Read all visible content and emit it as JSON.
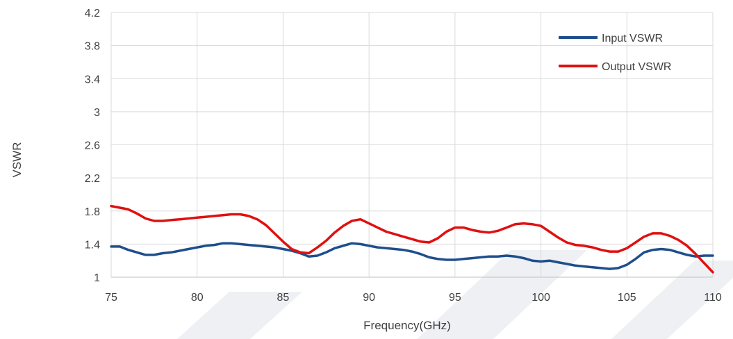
{
  "chart_data": {
    "type": "line",
    "title": "",
    "xlabel": "Frequency(GHz)",
    "ylabel": "VSWR",
    "xlim": [
      75,
      110
    ],
    "ylim": [
      1,
      4.2
    ],
    "xticks": [
      "75",
      "80",
      "85",
      "90",
      "95",
      "100",
      "105",
      "110"
    ],
    "yticks": [
      "1",
      "1.4",
      "1.8",
      "2.2",
      "2.6",
      "3",
      "3.4",
      "3.8",
      "4.2"
    ],
    "grid": true,
    "legend": "top-right",
    "series": [
      {
        "name": "Input VSWR",
        "color": "#1f4e8c",
        "x": [
          75,
          75.5,
          76,
          76.5,
          77,
          77.5,
          78,
          78.5,
          79,
          79.5,
          80,
          80.5,
          81,
          81.5,
          82,
          82.5,
          83,
          83.5,
          84,
          84.5,
          85,
          85.5,
          86,
          86.5,
          87,
          87.5,
          88,
          88.5,
          89,
          89.5,
          90,
          90.5,
          91,
          91.5,
          92,
          92.5,
          93,
          93.5,
          94,
          94.5,
          95,
          95.5,
          96,
          96.5,
          97,
          97.5,
          98,
          98.5,
          99,
          99.5,
          100,
          100.5,
          101,
          101.5,
          102,
          102.5,
          103,
          103.5,
          104,
          104.5,
          105,
          105.5,
          106,
          106.5,
          107,
          107.5,
          108,
          108.5,
          109,
          109.5,
          110
        ],
        "y": [
          1.37,
          1.37,
          1.33,
          1.3,
          1.27,
          1.27,
          1.29,
          1.3,
          1.32,
          1.34,
          1.36,
          1.38,
          1.39,
          1.41,
          1.41,
          1.4,
          1.39,
          1.38,
          1.37,
          1.36,
          1.34,
          1.32,
          1.29,
          1.25,
          1.26,
          1.3,
          1.35,
          1.38,
          1.41,
          1.4,
          1.38,
          1.36,
          1.35,
          1.34,
          1.33,
          1.31,
          1.28,
          1.24,
          1.22,
          1.21,
          1.21,
          1.22,
          1.23,
          1.24,
          1.25,
          1.25,
          1.26,
          1.25,
          1.23,
          1.2,
          1.19,
          1.2,
          1.18,
          1.16,
          1.14,
          1.13,
          1.12,
          1.11,
          1.1,
          1.11,
          1.15,
          1.22,
          1.3,
          1.33,
          1.34,
          1.33,
          1.3,
          1.27,
          1.25,
          1.26,
          1.26
        ]
      },
      {
        "name": "Output VSWR",
        "color": "#e01010",
        "x": [
          75,
          75.5,
          76,
          76.5,
          77,
          77.5,
          78,
          78.5,
          79,
          79.5,
          80,
          80.5,
          81,
          81.5,
          82,
          82.5,
          83,
          83.5,
          84,
          84.5,
          85,
          85.5,
          86,
          86.5,
          87,
          87.5,
          88,
          88.5,
          89,
          89.5,
          90,
          90.5,
          91,
          91.5,
          92,
          92.5,
          93,
          93.5,
          94,
          94.5,
          95,
          95.5,
          96,
          96.5,
          97,
          97.5,
          98,
          98.5,
          99,
          99.5,
          100,
          100.5,
          101,
          101.5,
          102,
          102.5,
          103,
          103.5,
          104,
          104.5,
          105,
          105.5,
          106,
          106.5,
          107,
          107.5,
          108,
          108.5,
          109,
          109.5,
          110
        ],
        "y": [
          1.86,
          1.84,
          1.82,
          1.77,
          1.71,
          1.68,
          1.68,
          1.69,
          1.7,
          1.71,
          1.72,
          1.73,
          1.74,
          1.75,
          1.76,
          1.76,
          1.74,
          1.7,
          1.63,
          1.53,
          1.43,
          1.34,
          1.3,
          1.29,
          1.36,
          1.44,
          1.54,
          1.62,
          1.68,
          1.7,
          1.65,
          1.6,
          1.55,
          1.52,
          1.49,
          1.46,
          1.43,
          1.42,
          1.47,
          1.55,
          1.6,
          1.6,
          1.57,
          1.55,
          1.54,
          1.56,
          1.6,
          1.64,
          1.65,
          1.64,
          1.62,
          1.55,
          1.48,
          1.42,
          1.39,
          1.38,
          1.36,
          1.33,
          1.31,
          1.31,
          1.35,
          1.42,
          1.49,
          1.53,
          1.53,
          1.5,
          1.45,
          1.38,
          1.28,
          1.17,
          1.06
        ]
      }
    ]
  }
}
